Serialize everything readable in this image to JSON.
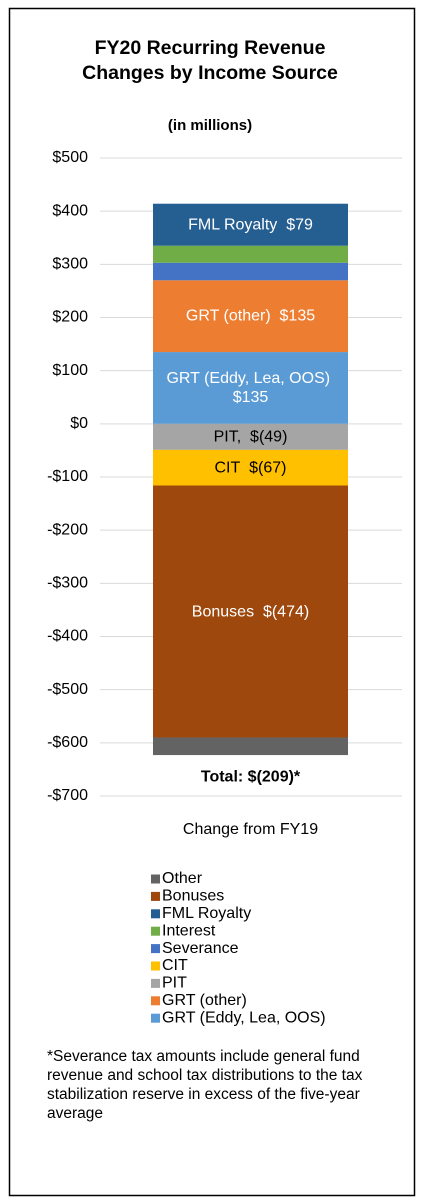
{
  "chart_data": {
    "type": "stacked_bar",
    "title": "FY20 Recurring Revenue Changes by Income Source",
    "subtitle": "(in millions)",
    "categories": [
      "Change from FY19"
    ],
    "series": [
      {
        "name": "GRT (Eddy, Lea, OOS)",
        "color": "#5b9bd5",
        "values": [
          135
        ],
        "value_labels": [
          "$135"
        ]
      },
      {
        "name": "GRT (other)",
        "color": "#ed7d31",
        "values": [
          135
        ],
        "value_labels": [
          "$135"
        ]
      },
      {
        "name": "PIT",
        "bar_label": "PIT,",
        "color": "#a5a5a5",
        "values": [
          -49
        ],
        "value_labels": [
          "$(49)"
        ]
      },
      {
        "name": "CIT",
        "color": "#ffc000",
        "values": [
          -67
        ],
        "value_labels": [
          "$(67)"
        ]
      },
      {
        "name": "Severance",
        "color": "#4472c4",
        "values": [
          33
        ]
      },
      {
        "name": "Interest",
        "color": "#70ad47",
        "values": [
          32
        ]
      },
      {
        "name": "FML Royalty",
        "color": "#255e91",
        "values": [
          79
        ],
        "value_labels": [
          "$79"
        ]
      },
      {
        "name": "Bonuses",
        "color": "#9e480e",
        "values": [
          -474
        ],
        "value_labels": [
          "$(474)"
        ]
      },
      {
        "name": "Other",
        "color": "#636363",
        "values": [
          -33
        ]
      }
    ],
    "total_label": "Total: $(209)*",
    "ylim": [
      -700,
      500
    ],
    "yticks": [
      {
        "value": 500,
        "label": "$500"
      },
      {
        "value": 400,
        "label": "$400"
      },
      {
        "value": 300,
        "label": "$300"
      },
      {
        "value": 200,
        "label": "$200"
      },
      {
        "value": 100,
        "label": "$100"
      },
      {
        "value": 0,
        "label": "$0"
      },
      {
        "value": -100,
        "label": "-$100"
      },
      {
        "value": -200,
        "label": "-$200"
      },
      {
        "value": -300,
        "label": "-$300"
      },
      {
        "value": -400,
        "label": "-$400"
      },
      {
        "value": -500,
        "label": "-$500"
      },
      {
        "value": -600,
        "label": "-$600"
      },
      {
        "value": -700,
        "label": "-$700"
      }
    ],
    "grid": true,
    "footnote": "*Severance tax amounts include general fund revenue and school tax distributions to the tax stabilization reserve in excess of the five-year average"
  }
}
